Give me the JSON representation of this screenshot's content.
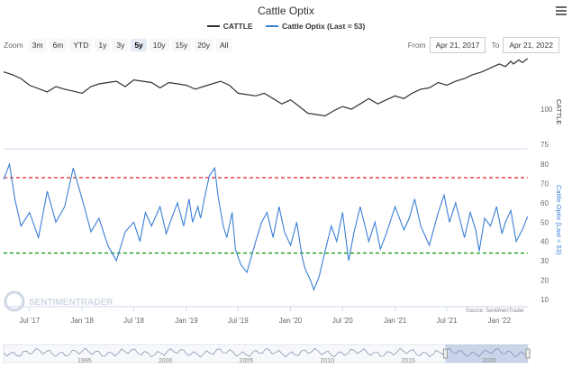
{
  "header": {
    "title": "Cattle Optix",
    "legend": [
      {
        "name": "CATTLE",
        "color": "#333333"
      },
      {
        "name": "Cattle Optix (Last = 53)",
        "color": "#3a7fd5"
      }
    ]
  },
  "zoom": {
    "label": "Zoom",
    "buttons": [
      "3m",
      "6m",
      "YTD",
      "1y",
      "3y",
      "5y",
      "10y",
      "15y",
      "20y",
      "All"
    ],
    "selected": "5y"
  },
  "range": {
    "from_label": "From",
    "from": "Apr 21, 2017",
    "to_label": "To",
    "to": "Apr 21, 2022"
  },
  "credit": "Source: SentimenTrader",
  "watermark": "SENTIMENTRADER",
  "colors": {
    "price": "#333333",
    "optix": "#3a7fd5",
    "upper": "#e02020",
    "lower": "#1a9a1a"
  },
  "chart_data": [
    {
      "type": "line",
      "series": [
        {
          "name": "CATTLE",
          "values": [
            128,
            126,
            123,
            118,
            113,
            117,
            115,
            112,
            117,
            119,
            121,
            117,
            122,
            120,
            116,
            120,
            118,
            115,
            117,
            119,
            121,
            118,
            112,
            110,
            112,
            108,
            104,
            107,
            102,
            97,
            96,
            95,
            99,
            102,
            100,
            104,
            108,
            104,
            107,
            110,
            108,
            112,
            115,
            116,
            120,
            118,
            121,
            123,
            126,
            128,
            131,
            134,
            132,
            136,
            134,
            137,
            135,
            138
          ]
        }
      ],
      "x": [
        "2017-04",
        "2017-05",
        "2017-06",
        "2017-07",
        "2017-09",
        "2017-10",
        "2017-11",
        "2018-01",
        "2018-02",
        "2018-03",
        "2018-05",
        "2018-06",
        "2018-07",
        "2018-09",
        "2018-10",
        "2018-11",
        "2019-01",
        "2019-02",
        "2019-03",
        "2019-04",
        "2019-05",
        "2019-06",
        "2019-07",
        "2019-09",
        "2019-10",
        "2019-11",
        "2019-12",
        "2020-01",
        "2020-02",
        "2020-03",
        "2020-04",
        "2020-05",
        "2020-06",
        "2020-07",
        "2020-08",
        "2020-09",
        "2020-10",
        "2020-11",
        "2020-12",
        "2021-01",
        "2021-02",
        "2021-03",
        "2021-04",
        "2021-05",
        "2021-06",
        "2021-07",
        "2021-08",
        "2021-09",
        "2021-10",
        "2021-11",
        "2021-12",
        "2022-01",
        "2022-02",
        "2022-02",
        "2022-03",
        "2022-03",
        "2022-04",
        "2022-04"
      ],
      "y_axis": {
        "ticks": [
          "100"
        ],
        "label": "CATTLE"
      }
    },
    {
      "type": "line",
      "series": [
        {
          "name": "Cattle Optix (Last = 53)",
          "values": [
            72,
            80,
            62,
            48,
            55,
            42,
            66,
            50,
            58,
            78,
            62,
            45,
            52,
            38,
            30,
            45,
            50,
            40,
            55,
            48,
            58,
            44,
            52,
            60,
            48,
            62,
            50,
            58,
            52,
            66,
            74,
            78,
            64,
            48,
            42,
            55,
            36,
            28,
            24,
            40,
            50,
            55,
            42,
            58,
            45,
            38,
            50,
            32,
            26,
            20,
            15,
            22,
            35,
            48,
            40,
            55,
            30,
            45,
            58,
            40,
            50,
            36,
            44,
            58,
            46,
            52,
            62,
            48,
            38,
            55,
            64,
            50,
            60,
            42,
            55,
            46,
            35,
            52,
            48,
            58,
            44,
            50,
            56,
            40,
            46,
            53
          ]
        }
      ],
      "x": [
        "2017-04",
        "2017-05",
        "2017-05",
        "2017-06",
        "2017-07",
        "2017-08",
        "2017-09",
        "2017-10",
        "2017-11",
        "2017-12",
        "2018-01",
        "2018-02",
        "2018-03",
        "2018-04",
        "2018-05",
        "2018-06",
        "2018-07",
        "2018-08",
        "2018-08",
        "2018-09",
        "2018-10",
        "2018-11",
        "2018-11",
        "2018-12",
        "2019-01",
        "2019-01",
        "2019-02",
        "2019-02",
        "2019-03",
        "2019-03",
        "2019-04",
        "2019-04",
        "2019-05",
        "2019-05",
        "2019-06",
        "2019-06",
        "2019-07",
        "2019-07",
        "2019-08",
        "2019-09",
        "2019-10",
        "2019-10",
        "2019-11",
        "2019-12",
        "2019-12",
        "2020-01",
        "2020-02",
        "2020-02",
        "2020-03",
        "2020-03",
        "2020-04",
        "2020-04",
        "2020-05",
        "2020-06",
        "2020-06",
        "2020-07",
        "2020-08",
        "2020-08",
        "2020-09",
        "2020-10",
        "2020-11",
        "2020-11",
        "2020-12",
        "2021-01",
        "2021-02",
        "2021-03",
        "2021-03",
        "2021-04",
        "2021-05",
        "2021-06",
        "2021-07",
        "2021-07",
        "2021-08",
        "2021-09",
        "2021-10",
        "2021-10",
        "2021-11",
        "2021-11",
        "2021-12",
        "2022-01",
        "2022-01",
        "2022-02",
        "2022-02",
        "2022-03",
        "2022-04",
        "2022-04"
      ],
      "y_axis": {
        "ticks": [
          "10",
          "20",
          "30",
          "40",
          "50",
          "60",
          "70",
          "80"
        ],
        "label": "Cattle Optix (Last = 53)",
        "range": [
          10,
          80
        ]
      },
      "reference_lines": [
        {
          "value": 73,
          "color": "#e02020",
          "style": "dashed"
        },
        {
          "value": 34,
          "color": "#1a9a1a",
          "style": "dashed"
        }
      ]
    },
    {
      "type": "area",
      "x_ticks": [
        "1995",
        "2000",
        "2005",
        "2010",
        "2015",
        "2020"
      ],
      "selected_range": [
        "2017-04",
        "2022-04"
      ]
    }
  ],
  "x_axis": {
    "ticks": [
      "Jul '17",
      "Jan '18",
      "Jul '18",
      "Jan '19",
      "Jul '19",
      "Jan '20",
      "Jul '20",
      "Jan '21",
      "Jul '21",
      "Jan '22"
    ]
  }
}
